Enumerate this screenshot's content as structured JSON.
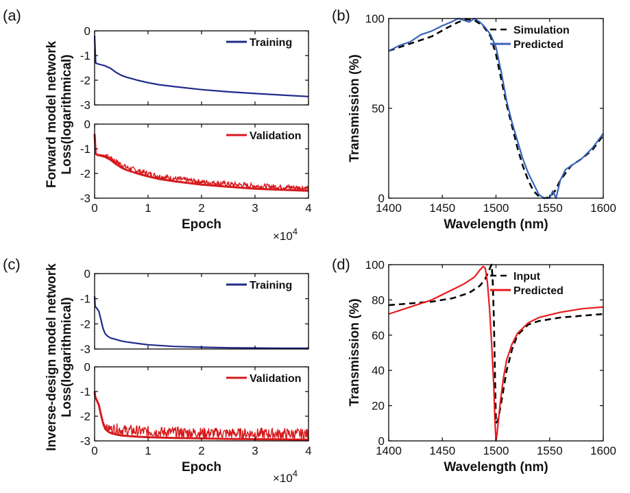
{
  "panel_labels": [
    "(a)",
    "(b)",
    "(c)",
    "(d)"
  ],
  "exponent_label": {
    "base": "×10",
    "power": "4"
  },
  "colors": {
    "training": "#1f2a8a",
    "validation": "#d7191c",
    "simulation": "#000000",
    "predicted_b": "#3a64b8",
    "predicted_d": "#e8191c"
  },
  "chart_data": [
    {
      "id": "a-top",
      "type": "line",
      "panel": "(a)",
      "ylabel": "Forward model network Loss(logarithmical)",
      "xlim": [
        0,
        40000
      ],
      "ylim": [
        -3,
        0
      ],
      "yticks": [
        0,
        -1,
        -2,
        -3
      ],
      "ytick_labels": [
        "0",
        "-1",
        "-2",
        "-3"
      ],
      "legend": "top-right",
      "series": [
        {
          "name": "Training",
          "x": [
            0,
            200,
            500,
            1000,
            2000,
            3000,
            4000,
            5000,
            6000,
            7000,
            8000,
            10000,
            12000,
            15000,
            20000,
            25000,
            30000,
            35000,
            40000
          ],
          "y": [
            -0.2,
            -1.3,
            -1.33,
            -1.36,
            -1.42,
            -1.52,
            -1.68,
            -1.8,
            -1.88,
            -1.94,
            -2.0,
            -2.1,
            -2.18,
            -2.26,
            -2.38,
            -2.47,
            -2.54,
            -2.6,
            -2.66
          ]
        }
      ]
    },
    {
      "id": "a-bottom",
      "type": "line",
      "panel": "(a)",
      "xlabel": "Epoch",
      "xlim": [
        0,
        40000
      ],
      "ylim": [
        -3,
        0
      ],
      "xticks": [
        0,
        10000,
        20000,
        30000,
        40000
      ],
      "xtick_labels": [
        "0",
        "1",
        "2",
        "3",
        "4"
      ],
      "yticks": [
        0,
        -1,
        -2,
        -3
      ],
      "ytick_labels": [
        "0",
        "-1",
        "-2",
        "-3"
      ],
      "legend": "top-right",
      "series": [
        {
          "name": "Validation",
          "x": [
            0,
            200,
            500,
            1000,
            2000,
            3000,
            4000,
            5000,
            6000,
            7000,
            8000,
            10000,
            12000,
            15000,
            20000,
            25000,
            30000,
            35000,
            40000
          ],
          "y": [
            -0.4,
            -1.2,
            -1.25,
            -1.27,
            -1.33,
            -1.45,
            -1.62,
            -1.76,
            -1.86,
            -1.93,
            -2.0,
            -2.12,
            -2.22,
            -2.32,
            -2.45,
            -2.54,
            -2.62,
            -2.66,
            -2.7
          ],
          "noise": 0.22
        }
      ]
    },
    {
      "id": "b",
      "type": "line",
      "panel": "(b)",
      "xlabel": "Wavelength (nm)",
      "ylabel": "Transmission (%)",
      "xlim": [
        1400,
        1600
      ],
      "ylim": [
        0,
        100
      ],
      "xticks": [
        1400,
        1450,
        1500,
        1550,
        1600
      ],
      "yticks": [
        0,
        50,
        100
      ],
      "legend": "top-right",
      "series": [
        {
          "name": "Simulation",
          "style": "dashed",
          "x": [
            1400,
            1420,
            1440,
            1455,
            1465,
            1472,
            1480,
            1488,
            1495,
            1500,
            1505,
            1510,
            1515,
            1520,
            1525,
            1530,
            1535,
            1540,
            1545,
            1550,
            1555,
            1560,
            1570,
            1580,
            1590,
            1600
          ],
          "y": [
            82,
            86,
            90,
            95,
            98,
            99.5,
            99,
            96,
            90,
            80,
            66,
            52,
            40,
            28,
            18,
            10,
            4,
            1,
            0,
            0.5,
            4,
            10,
            18,
            22,
            27,
            35
          ]
        },
        {
          "name": "Predicted",
          "x": [
            1400,
            1410,
            1420,
            1430,
            1440,
            1450,
            1458,
            1465,
            1470,
            1475,
            1480,
            1485,
            1490,
            1495,
            1500,
            1505,
            1510,
            1515,
            1520,
            1525,
            1530,
            1535,
            1540,
            1545,
            1550,
            1553,
            1556,
            1560,
            1565,
            1570,
            1580,
            1590,
            1600
          ],
          "y": [
            82,
            85,
            87,
            91,
            93,
            96,
            98,
            100,
            99,
            98,
            100,
            98,
            95,
            91,
            84,
            70,
            54,
            42,
            32,
            22,
            14,
            8,
            2,
            0,
            0,
            4,
            0,
            10,
            16,
            18,
            22,
            28,
            36
          ]
        }
      ]
    },
    {
      "id": "c-top",
      "type": "line",
      "panel": "(c)",
      "ylabel": "Inverse-design model network Loss(logarithmical)",
      "xlim": [
        0,
        40000
      ],
      "ylim": [
        -3,
        0
      ],
      "yticks": [
        0,
        -1,
        -2,
        -3
      ],
      "ytick_labels": [
        "0",
        "-1",
        "-2",
        "-3"
      ],
      "legend": "top-right",
      "series": [
        {
          "name": "Training",
          "x": [
            0,
            100,
            300,
            800,
            1200,
            1600,
            2000,
            2500,
            3000,
            4000,
            5000,
            6000,
            8000,
            10000,
            15000,
            20000,
            25000,
            30000,
            35000,
            40000
          ],
          "y": [
            -0.9,
            -1.3,
            -1.35,
            -1.5,
            -1.85,
            -2.2,
            -2.4,
            -2.5,
            -2.56,
            -2.62,
            -2.68,
            -2.72,
            -2.78,
            -2.83,
            -2.9,
            -2.93,
            -2.95,
            -2.96,
            -2.97,
            -2.97
          ]
        }
      ]
    },
    {
      "id": "c-bottom",
      "type": "line",
      "panel": "(c)",
      "xlabel": "Epoch",
      "xlim": [
        0,
        40000
      ],
      "ylim": [
        -3,
        0
      ],
      "xticks": [
        0,
        10000,
        20000,
        30000,
        40000
      ],
      "xtick_labels": [
        "0",
        "1",
        "2",
        "3",
        "4"
      ],
      "yticks": [
        0,
        -1,
        -2,
        -3
      ],
      "ytick_labels": [
        "0",
        "-1",
        "-2",
        "-3"
      ],
      "legend": "top-right",
      "series": [
        {
          "name": "Validation",
          "x": [
            0,
            100,
            300,
            800,
            1200,
            1600,
            2000,
            2500,
            3000,
            4000,
            5000,
            6000,
            8000,
            10000,
            15000,
            20000,
            25000,
            30000,
            35000,
            40000
          ],
          "y": [
            -1.0,
            -1.2,
            -1.3,
            -1.55,
            -1.95,
            -2.3,
            -2.52,
            -2.62,
            -2.68,
            -2.74,
            -2.78,
            -2.8,
            -2.83,
            -2.85,
            -2.88,
            -2.9,
            -2.92,
            -2.93,
            -2.94,
            -2.95
          ],
          "noise": 0.45
        }
      ]
    },
    {
      "id": "d",
      "type": "line",
      "panel": "(d)",
      "xlabel": "Wavelength (nm)",
      "ylabel": "Transmission (%)",
      "xlim": [
        1400,
        1600
      ],
      "ylim": [
        0,
        100
      ],
      "xticks": [
        1400,
        1450,
        1500,
        1550,
        1600
      ],
      "yticks": [
        0,
        20,
        40,
        60,
        80,
        100
      ],
      "legend": "top-right",
      "series": [
        {
          "name": "Input",
          "style": "dashed",
          "x": [
            1400,
            1420,
            1440,
            1460,
            1475,
            1485,
            1490,
            1493,
            1495,
            1496,
            1497,
            1498,
            1499,
            1500,
            1502,
            1505,
            1510,
            1515,
            1520,
            1530,
            1540,
            1560,
            1580,
            1600
          ],
          "y": [
            77,
            78,
            79,
            81,
            84,
            88,
            92,
            96,
            99,
            100,
            90,
            70,
            40,
            10,
            12,
            22,
            40,
            52,
            60,
            66,
            68,
            70,
            71,
            72
          ]
        },
        {
          "name": "Predicted",
          "x": [
            1400,
            1420,
            1440,
            1460,
            1470,
            1480,
            1485,
            1488,
            1490,
            1492,
            1494,
            1496,
            1498,
            1499,
            1500,
            1501,
            1502,
            1504,
            1507,
            1510,
            1515,
            1520,
            1530,
            1540,
            1560,
            1580,
            1600
          ],
          "y": [
            72,
            76,
            80,
            86,
            89,
            93,
            97,
            99,
            98,
            90,
            75,
            55,
            30,
            12,
            0,
            4,
            10,
            22,
            36,
            46,
            55,
            61,
            67,
            70,
            73,
            75,
            76
          ]
        }
      ]
    }
  ]
}
